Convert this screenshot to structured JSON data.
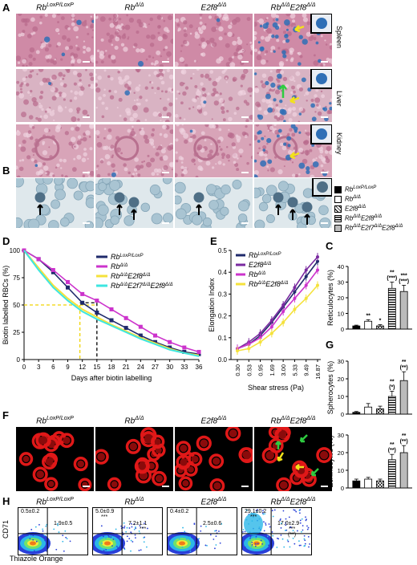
{
  "panel_letters": {
    "a": "A",
    "b": "B",
    "c": "C",
    "d": "D",
    "e": "E",
    "f": "F",
    "g": "G",
    "h": "H"
  },
  "genotypes": [
    "Rb^LoxP/LoxP",
    "Rb^Δ/Δ",
    "E2f8^Δ/Δ",
    "Rb^Δ/ΔE2f8^Δ/Δ"
  ],
  "genotype_parts": [
    {
      "base": "Rb",
      "sup": "LoxP/LoxP"
    },
    {
      "base": "Rb",
      "sup": "Δ/Δ"
    },
    {
      "base": "E2f8",
      "sup": "Δ/Δ"
    },
    {
      "base": "Rb",
      "sup": "Δ/Δ",
      "base2": "E2f8",
      "sup2": "Δ/Δ"
    }
  ],
  "tissues": [
    "Spleen",
    "Liver",
    "Kidney"
  ],
  "legend_b": [
    "Rb^LoxP/LoxP",
    "Rb^Δ/Δ",
    "E2f8^Δ/Δ",
    "Rb^Δ/ΔE2f8^Δ/Δ",
    "Rb^Δ/ΔE2f7^Δ/ΔE2f8^Δ/Δ"
  ],
  "colors": {
    "he_pink": "#cf8aa6",
    "he_light": "#e7c2d2",
    "prussian": "#2f6fb6",
    "smear_bg": "#a9c4d2",
    "rbc": "#4f6f86",
    "loxp": "#1f2a6b",
    "rb": "#cc33cc",
    "rbe2f8": "#f5e23c",
    "rbe2f7e2f8": "#3ee6e0",
    "rbe2f8_e": "#f5e23c",
    "e2f8_e": "#7a2aa0",
    "fluor_red": "#e01818",
    "arrow_yellow": "#f2e21a",
    "arrow_green": "#2ecc40"
  },
  "chart_data": [
    {
      "id": "D",
      "type": "line",
      "ylabel": "Biotin labelled RBCs (%)",
      "xlabel": "Days after biotin labelling",
      "x": [
        0,
        3,
        6,
        9,
        12,
        15,
        18,
        21,
        24,
        27,
        30,
        33,
        36
      ],
      "xticks": [
        "0",
        "3",
        "6",
        "9",
        "12",
        "15",
        "18",
        "21",
        "24",
        "27",
        "30",
        "33",
        "36"
      ],
      "yticks": [
        "0",
        "25",
        "50",
        "75",
        "100"
      ],
      "ylim": [
        0,
        100
      ],
      "xlim": [
        0,
        36
      ],
      "series": [
        {
          "name": "Rb^LoxP/LoxP",
          "values": [
            100,
            92,
            80,
            66,
            52,
            43,
            36,
            29,
            22,
            16,
            11,
            7,
            5
          ]
        },
        {
          "name": "Rb^Δ/Δ",
          "values": [
            100,
            92,
            82,
            71,
            60,
            54,
            46,
            38,
            30,
            22,
            16,
            11,
            7
          ]
        },
        {
          "name": "Rb^Δ/ΔE2f8^Δ/Δ",
          "values": [
            100,
            84,
            68,
            56,
            46,
            39,
            32,
            26,
            20,
            15,
            10,
            6,
            4
          ]
        },
        {
          "name": "Rb^Δ/ΔE2f7^Δ/ΔE2f8^Δ/Δ",
          "values": [
            100,
            82,
            66,
            54,
            44,
            37,
            31,
            25,
            19,
            14,
            9,
            6,
            3
          ]
        }
      ],
      "legend_position": "top-right"
    },
    {
      "id": "E",
      "type": "line",
      "ylabel": "Elongation Index",
      "xlabel": "Shear stress (Pa)",
      "categories": [
        "0.30",
        "0.53",
        "0.95",
        "1.69",
        "3.00",
        "5.33",
        "9.49",
        "16.87"
      ],
      "yticks": [
        "0.0",
        "0.1",
        "0.2",
        "0.3",
        "0.4",
        "0.5"
      ],
      "ylim": [
        0,
        0.5
      ],
      "series": [
        {
          "name": "Rb^LoxP/LoxP",
          "values": [
            0.05,
            0.07,
            0.11,
            0.17,
            0.24,
            0.31,
            0.38,
            0.45
          ]
        },
        {
          "name": "E2f8^Δ/Δ",
          "values": [
            0.05,
            0.08,
            0.12,
            0.18,
            0.25,
            0.33,
            0.41,
            0.47
          ]
        },
        {
          "name": "Rb^Δ/Δ",
          "values": [
            0.05,
            0.07,
            0.1,
            0.15,
            0.22,
            0.28,
            0.34,
            0.41
          ]
        },
        {
          "name": "Rb^Δ/ΔE2f8^Δ/Δ",
          "values": [
            0.04,
            0.05,
            0.08,
            0.12,
            0.17,
            0.23,
            0.28,
            0.34
          ]
        }
      ],
      "legend_position": "top-left"
    },
    {
      "id": "C",
      "type": "bar",
      "ylabel": "Reticulocytes (%)",
      "yticks": [
        "0",
        "10",
        "20",
        "30",
        "40"
      ],
      "ylim": [
        0,
        40
      ],
      "values": [
        2,
        5,
        2,
        26,
        24
      ],
      "errors": [
        0.5,
        1,
        0.8,
        4,
        4
      ],
      "stars": [
        "",
        "**",
        "*",
        "**\n(***)",
        "***\n(***)"
      ]
    },
    {
      "id": "G1",
      "type": "bar",
      "ylabel": "Spherocytes (%)",
      "yticks": [
        "0",
        "10",
        "20",
        "30"
      ],
      "ylim": [
        0,
        30
      ],
      "values": [
        1,
        4,
        3,
        10,
        19
      ],
      "errors": [
        0.5,
        2,
        1.5,
        3,
        5
      ],
      "stars": [
        "",
        "",
        "",
        "**\n(*)",
        "**\n(**)"
      ]
    },
    {
      "id": "G2",
      "type": "bar",
      "ylabel": "Echinocytes (%)",
      "yticks": [
        "0",
        "10",
        "20",
        "30"
      ],
      "ylim": [
        0,
        30
      ],
      "values": [
        4,
        5,
        4,
        16,
        20
      ],
      "errors": [
        1,
        1,
        1,
        3,
        4
      ],
      "stars": [
        "",
        "",
        "",
        "**\n(**)",
        "**\n(**)"
      ]
    }
  ],
  "flow": {
    "ylabel": "CD71",
    "xlabel": "Thiazole Orange",
    "panels": [
      {
        "ul": "0.5±0.2",
        "ur": "1.9±0.5",
        "ur_sig": ""
      },
      {
        "ul": "5.0±0.9",
        "ul_sig": "***",
        "ur": "7.2±1.1",
        "ur_sig": "***"
      },
      {
        "ul": "0.4±0.2",
        "ur": "2.5±0.6",
        "ur_sig": ""
      },
      {
        "ul": "29.1±0.2",
        "ul_sig": "***",
        "ur": "17.0±2.9",
        "ur_sig": "***",
        "ur_sig2": "(**)"
      }
    ]
  }
}
